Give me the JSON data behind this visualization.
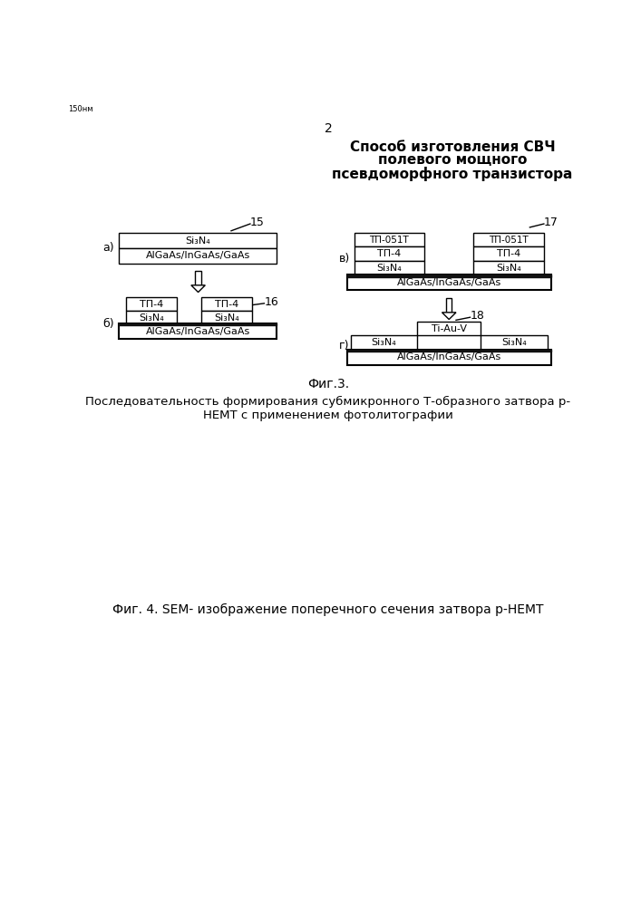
{
  "page_num": "2",
  "title_line1": "Способ изготовления СВЧ",
  "title_line2": "полевого мощного",
  "title_line3": "псевдоморфного транзистора",
  "fig3_caption": "Фиг.3.",
  "fig3_desc_line1": "Последовательность формирования субмикронного Т-образного затвора р-",
  "fig3_desc_line2": "НЕМТ с применением фотолитографии",
  "fig4_caption": "Фиг. 4. SEM- изображение поперечного сечения затвора р-НЕМТ",
  "label_a": "а)",
  "label_b": "б)",
  "label_v": "в)",
  "label_g": "г)",
  "label_15": "15",
  "label_16": "16",
  "label_17": "17",
  "label_18": "18",
  "box_si3n4_a": "Si₃N₄",
  "box_algaas_a": "AlGaAs/InGaAs/GaAs",
  "box_fp4_b_left": "ΤП-4",
  "box_fp4_b_right": "ΤП-4",
  "box_si3n4_b_left": "Si₃N₄",
  "box_si3n4_b_right": "Si₃N₄",
  "box_algaas_b": "AlGaAs/InGaAs/GaAs",
  "box_fp051t_v_left": "ΤП-051T",
  "box_fp051t_v_right": "ΤП-051T",
  "box_fp4_v_left": "ΤП-4",
  "box_fp4_v_right": "ΤП-4",
  "box_si3n4_v_left": "Si₃N₄",
  "box_si3n4_v_right": "Si₃N₄",
  "box_algaas_v": "AlGaAs/InGaAs/GaAs",
  "box_tiauv": "Ti-Au-V",
  "box_si3n4_g_left": "Si₃N₄",
  "box_si3n4_g_right": "Si₃N₄",
  "box_algaas_g": "AlGaAs/InGaAs/GaAs",
  "bg_color": "#ffffff",
  "text_color": "#000000",
  "box_fill": "#ffffff",
  "box_edge": "#000000",
  "dark_box_fill": "#111111"
}
